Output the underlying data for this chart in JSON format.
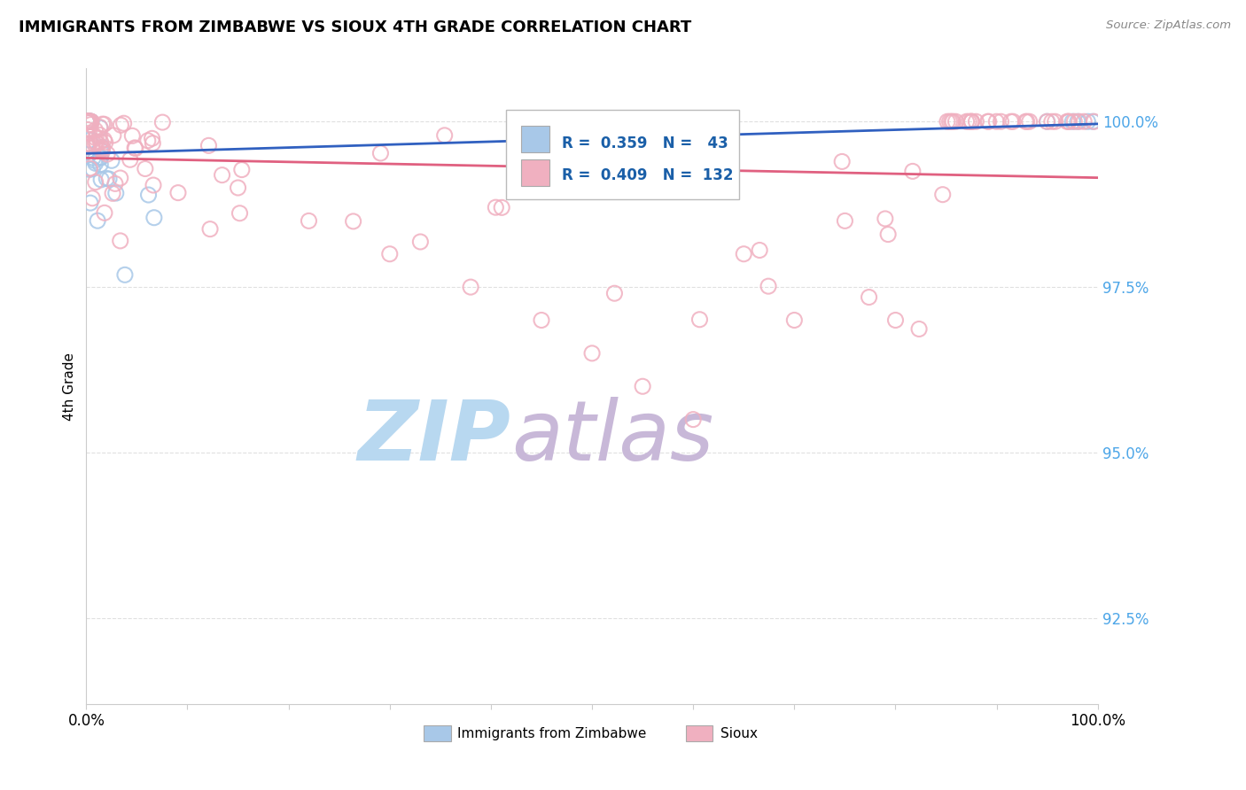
{
  "title": "IMMIGRANTS FROM ZIMBABWE VS SIOUX 4TH GRADE CORRELATION CHART",
  "source_text": "Source: ZipAtlas.com",
  "ylabel": "4th Grade",
  "xlim": [
    0.0,
    100.0
  ],
  "ylim": [
    91.2,
    100.8
  ],
  "yticks": [
    92.5,
    95.0,
    97.5,
    100.0
  ],
  "ytick_labels": [
    "92.5%",
    "95.0%",
    "97.5%",
    "100.0%"
  ],
  "color_blue": "#a8c8e8",
  "color_pink": "#f0b0c0",
  "color_blue_line": "#3060c0",
  "color_pink_line": "#e06080",
  "watermark_zip": "ZIP",
  "watermark_atlas": "atlas",
  "watermark_color_zip": "#b8d8f0",
  "watermark_color_atlas": "#c8b8d8",
  "background_color": "#ffffff",
  "grid_color": "#e0e0e0",
  "legend_r1_val": "0.359",
  "legend_n1_val": "43",
  "legend_r2_val": "0.409",
  "legend_n2_val": "132",
  "legend_text_color": "#1a5fa8",
  "ytick_color": "#4da6e8",
  "source_color": "#888888"
}
